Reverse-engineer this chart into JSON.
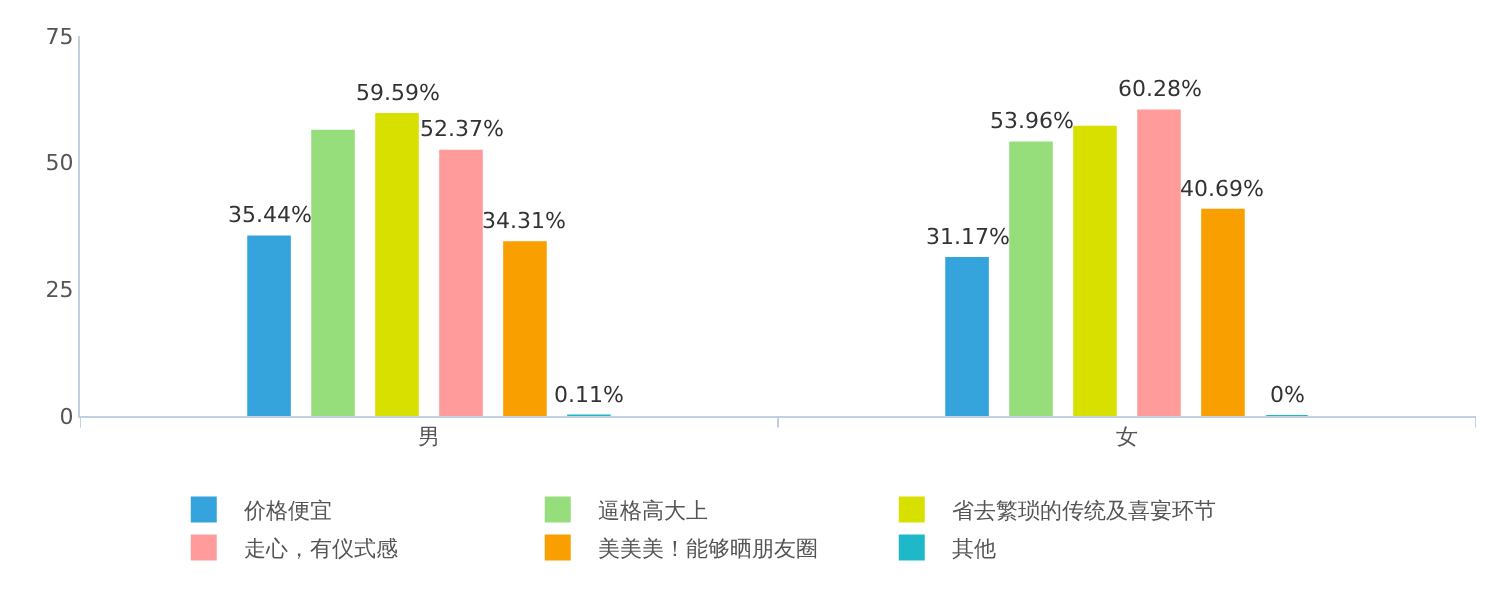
{
  "chart_data": {
    "type": "bar",
    "categories": [
      "男",
      "女"
    ],
    "ylim": [
      0,
      75
    ],
    "yticks": [
      0,
      25,
      50,
      75
    ],
    "legend": "bottom left",
    "series": [
      {
        "name": "价格便宜",
        "color": "#35a3dc",
        "values": [
          35.44,
          31.17
        ],
        "value_labels": [
          "35.44%",
          "31.17%"
        ]
      },
      {
        "name": "逼格高大上",
        "color": "#96dd7c",
        "values": [
          56.3,
          53.96
        ],
        "value_labels": [
          null,
          "53.96%"
        ]
      },
      {
        "name": "省去繁琐的传统及喜宴环节",
        "color": "#d8e000",
        "values": [
          59.59,
          57.1
        ],
        "value_labels": [
          "59.59%",
          null
        ]
      },
      {
        "name": "走心，有仪式感",
        "color": "#ff9b9b",
        "values": [
          52.37,
          60.28
        ],
        "value_labels": [
          "52.37%",
          "60.28%"
        ]
      },
      {
        "name": "美美美！能够晒朋友圈",
        "color": "#fa9f00",
        "values": [
          34.31,
          40.69
        ],
        "value_labels": [
          "34.31%",
          "40.69%"
        ]
      },
      {
        "name": "其他",
        "color": "#1fb8c8",
        "values": [
          0.11,
          0
        ],
        "value_labels": [
          "0.11%",
          "0%"
        ]
      }
    ]
  }
}
